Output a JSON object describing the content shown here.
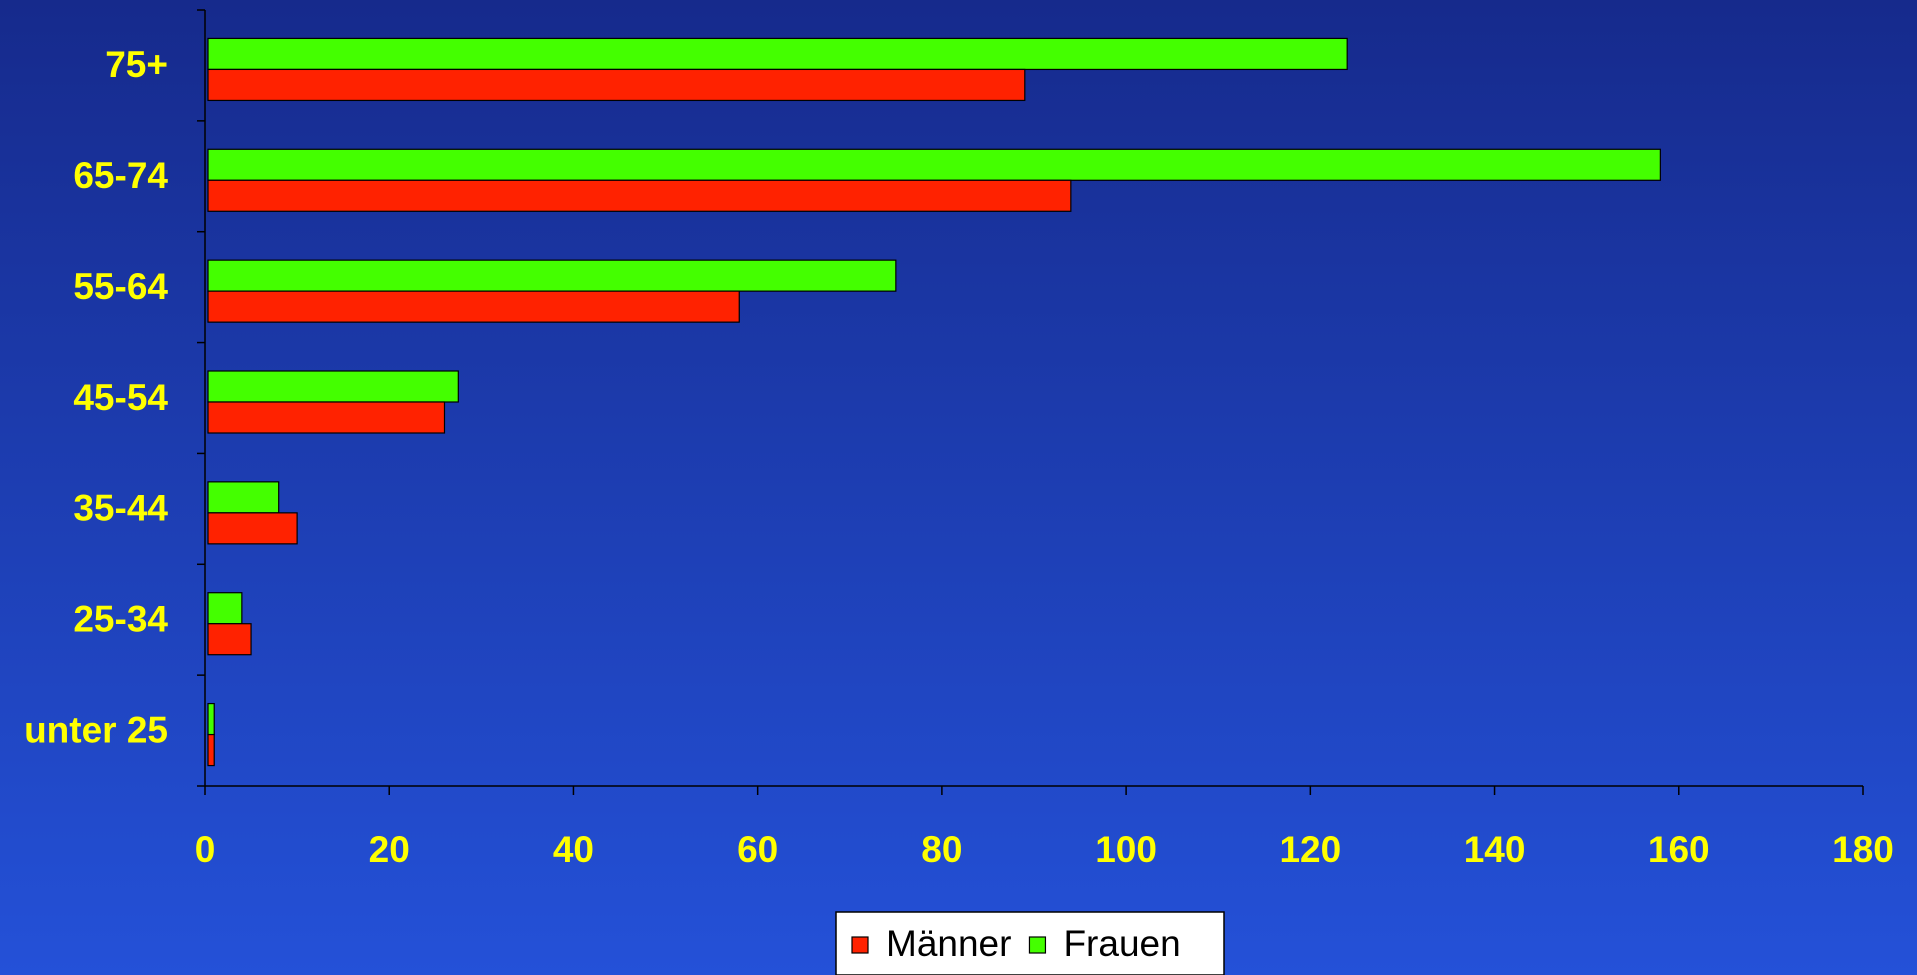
{
  "chart_data": {
    "type": "bar",
    "orientation": "horizontal",
    "categories": [
      "75+",
      "65-74",
      "55-64",
      "45-54",
      "35-44",
      "25-34",
      "unter 25"
    ],
    "series": [
      {
        "name": "Männer",
        "color": "#ff2200",
        "values": [
          89,
          94,
          58,
          26,
          10,
          5,
          1
        ]
      },
      {
        "name": "Frauen",
        "color": "#44ff00",
        "values": [
          124,
          158,
          75,
          27.5,
          8,
          4,
          1
        ]
      }
    ],
    "xlim": [
      0,
      180
    ],
    "xticks": [
      0,
      20,
      40,
      60,
      80,
      100,
      120,
      140,
      160,
      180
    ],
    "legend": "bottom"
  }
}
